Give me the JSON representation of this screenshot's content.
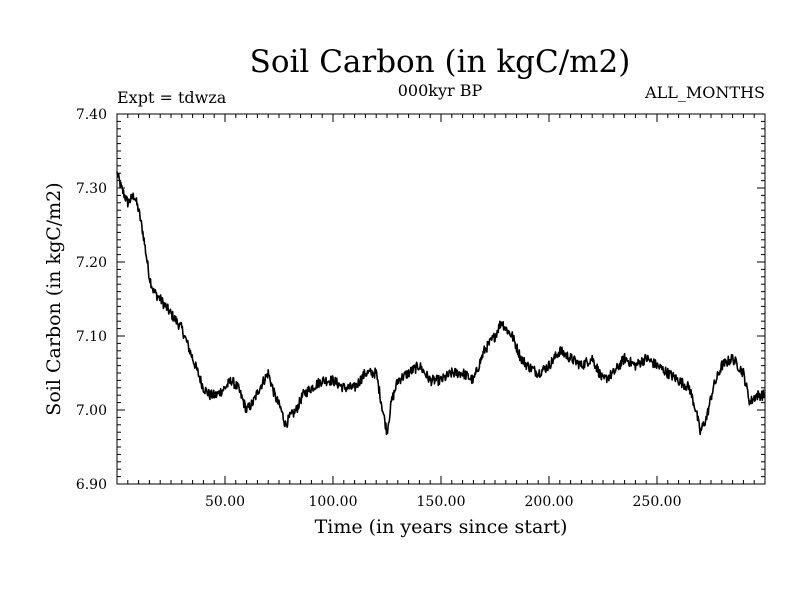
{
  "chart_data": {
    "type": "line",
    "title": "Soil Carbon (in kgC/m2)",
    "subtitle": "000kyr BP",
    "experiment_label": "Expt = tdwza",
    "period_label": "ALL_MONTHS",
    "xlabel": "Time (in years since start)",
    "ylabel": "Soil Carbon (in kgC/m2)",
    "xlim": [
      0,
      300
    ],
    "ylim": [
      6.9,
      7.4
    ],
    "xticks": [
      50,
      100,
      150,
      200,
      250
    ],
    "xtick_labels": [
      "50.00",
      "100.00",
      "150.00",
      "200.00",
      "250.00"
    ],
    "yticks": [
      6.9,
      7.0,
      7.1,
      7.2,
      7.3,
      7.4
    ],
    "ytick_labels": [
      "6.90",
      "7.00",
      "7.10",
      "7.20",
      "7.30",
      "7.40"
    ],
    "grid": false,
    "line_color": "#000000",
    "series": [
      {
        "x": [
          0,
          2,
          5,
          8,
          10,
          12,
          15,
          17,
          20,
          25,
          30,
          35,
          40,
          43,
          46,
          50,
          53,
          56,
          60,
          63,
          66,
          70,
          73,
          76,
          78,
          80,
          83,
          86,
          90,
          95,
          100,
          105,
          110,
          115,
          120,
          123,
          125,
          127,
          130,
          135,
          140,
          145,
          150,
          155,
          160,
          165,
          170,
          175,
          178,
          180,
          183,
          187,
          190,
          195,
          200,
          205,
          210,
          215,
          220,
          225,
          230,
          235,
          240,
          245,
          250,
          255,
          260,
          265,
          268,
          270,
          273,
          276,
          280,
          285,
          290,
          293,
          296,
          300
        ],
        "y": [
          7.32,
          7.3,
          7.28,
          7.29,
          7.27,
          7.24,
          7.18,
          7.16,
          7.15,
          7.13,
          7.11,
          7.07,
          7.03,
          7.02,
          7.02,
          7.03,
          7.04,
          7.03,
          7.0,
          7.01,
          7.03,
          7.05,
          7.02,
          7.0,
          6.98,
          6.99,
          7.0,
          7.02,
          7.03,
          7.04,
          7.04,
          7.03,
          7.03,
          7.05,
          7.05,
          7.0,
          6.97,
          7.01,
          7.04,
          7.05,
          7.06,
          7.04,
          7.04,
          7.05,
          7.05,
          7.04,
          7.08,
          7.1,
          7.12,
          7.11,
          7.1,
          7.07,
          7.06,
          7.05,
          7.06,
          7.08,
          7.07,
          7.06,
          7.07,
          7.04,
          7.05,
          7.07,
          7.06,
          7.07,
          7.06,
          7.05,
          7.04,
          7.03,
          7.0,
          6.97,
          6.99,
          7.03,
          7.06,
          7.07,
          7.05,
          7.01,
          7.02,
          7.02
        ]
      }
    ]
  }
}
